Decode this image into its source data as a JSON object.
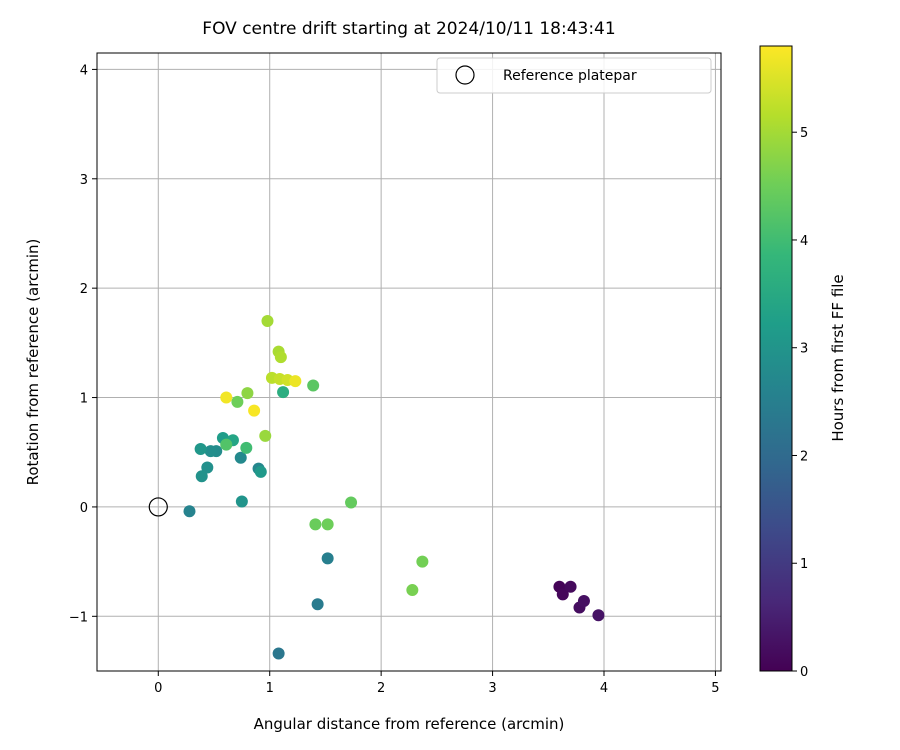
{
  "chart_data": {
    "type": "scatter",
    "title": "FOV centre drift starting at 2024/10/11 18:43:41",
    "xlabel": "Angular distance from reference (arcmin)",
    "ylabel": "Rotation from reference (arcmin)",
    "xlim": [
      -0.55,
      5.05
    ],
    "ylim": [
      -1.5,
      4.15
    ],
    "xticks": [
      0,
      1,
      2,
      3,
      4,
      5
    ],
    "yticks": [
      -1,
      0,
      1,
      2,
      3,
      4
    ],
    "xtick_labels": [
      "0",
      "1",
      "2",
      "3",
      "4",
      "5"
    ],
    "ytick_labels": [
      "−1",
      "0",
      "1",
      "2",
      "3",
      "4"
    ],
    "grid": true,
    "legend": {
      "position": "top-right",
      "entries": [
        {
          "label": "Reference platepar",
          "marker": "open-circle"
        }
      ]
    },
    "reference_point": {
      "x": 0,
      "y": 0
    },
    "colorbar": {
      "label": "Hours from first FF file",
      "colormap": "viridis",
      "range": [
        0,
        5.8
      ],
      "ticks": [
        0,
        1,
        2,
        3,
        4,
        5
      ],
      "tick_labels": [
        "0",
        "1",
        "2",
        "3",
        "4",
        "5"
      ]
    },
    "colormap_stops": [
      "#440154",
      "#482878",
      "#3e4989",
      "#31688e",
      "#26828e",
      "#1f9e89",
      "#35b779",
      "#6ece58",
      "#b5de2b",
      "#fde725"
    ],
    "points": [
      {
        "x": 3.6,
        "y": -0.73,
        "hours": 0.05
      },
      {
        "x": 3.63,
        "y": -0.8,
        "hours": 0.1
      },
      {
        "x": 3.7,
        "y": -0.73,
        "hours": 0.15
      },
      {
        "x": 3.78,
        "y": -0.92,
        "hours": 0.2
      },
      {
        "x": 3.82,
        "y": -0.86,
        "hours": 0.25
      },
      {
        "x": 3.95,
        "y": -0.99,
        "hours": 0.3
      },
      {
        "x": 1.08,
        "y": -1.34,
        "hours": 2.3
      },
      {
        "x": 1.43,
        "y": -0.89,
        "hours": 2.4
      },
      {
        "x": 1.52,
        "y": -0.47,
        "hours": 2.5
      },
      {
        "x": 0.28,
        "y": -0.04,
        "hours": 2.6
      },
      {
        "x": 0.9,
        "y": 0.35,
        "hours": 2.7
      },
      {
        "x": 0.74,
        "y": 0.45,
        "hours": 2.75
      },
      {
        "x": 0.52,
        "y": 0.51,
        "hours": 2.8
      },
      {
        "x": 0.47,
        "y": 0.51,
        "hours": 2.85
      },
      {
        "x": 0.44,
        "y": 0.36,
        "hours": 2.9
      },
      {
        "x": 0.39,
        "y": 0.28,
        "hours": 2.95
      },
      {
        "x": 0.75,
        "y": 0.05,
        "hours": 3.0
      },
      {
        "x": 0.38,
        "y": 0.53,
        "hours": 3.05
      },
      {
        "x": 0.92,
        "y": 0.32,
        "hours": 3.1
      },
      {
        "x": 0.58,
        "y": 0.63,
        "hours": 3.2
      },
      {
        "x": 0.67,
        "y": 0.61,
        "hours": 3.4
      },
      {
        "x": 1.12,
        "y": 1.05,
        "hours": 3.6
      },
      {
        "x": 0.79,
        "y": 0.54,
        "hours": 4.0
      },
      {
        "x": 0.61,
        "y": 0.57,
        "hours": 4.2
      },
      {
        "x": 1.39,
        "y": 1.11,
        "hours": 4.3
      },
      {
        "x": 1.73,
        "y": 0.04,
        "hours": 4.4
      },
      {
        "x": 1.41,
        "y": -0.16,
        "hours": 4.45
      },
      {
        "x": 1.52,
        "y": -0.16,
        "hours": 4.5
      },
      {
        "x": 0.71,
        "y": 0.96,
        "hours": 4.5
      },
      {
        "x": 2.37,
        "y": -0.5,
        "hours": 4.55
      },
      {
        "x": 2.28,
        "y": -0.76,
        "hours": 4.6
      },
      {
        "x": 0.8,
        "y": 1.04,
        "hours": 4.8
      },
      {
        "x": 0.96,
        "y": 0.65,
        "hours": 4.9
      },
      {
        "x": 0.98,
        "y": 1.7,
        "hours": 5.0
      },
      {
        "x": 1.08,
        "y": 1.42,
        "hours": 5.05
      },
      {
        "x": 1.1,
        "y": 1.37,
        "hours": 5.1
      },
      {
        "x": 1.02,
        "y": 1.18,
        "hours": 5.2
      },
      {
        "x": 1.09,
        "y": 1.17,
        "hours": 5.3
      },
      {
        "x": 1.16,
        "y": 1.16,
        "hours": 5.4
      },
      {
        "x": 1.23,
        "y": 1.15,
        "hours": 5.65
      },
      {
        "x": 0.61,
        "y": 1.0,
        "hours": 5.7
      },
      {
        "x": 0.86,
        "y": 0.88,
        "hours": 5.75
      }
    ]
  }
}
